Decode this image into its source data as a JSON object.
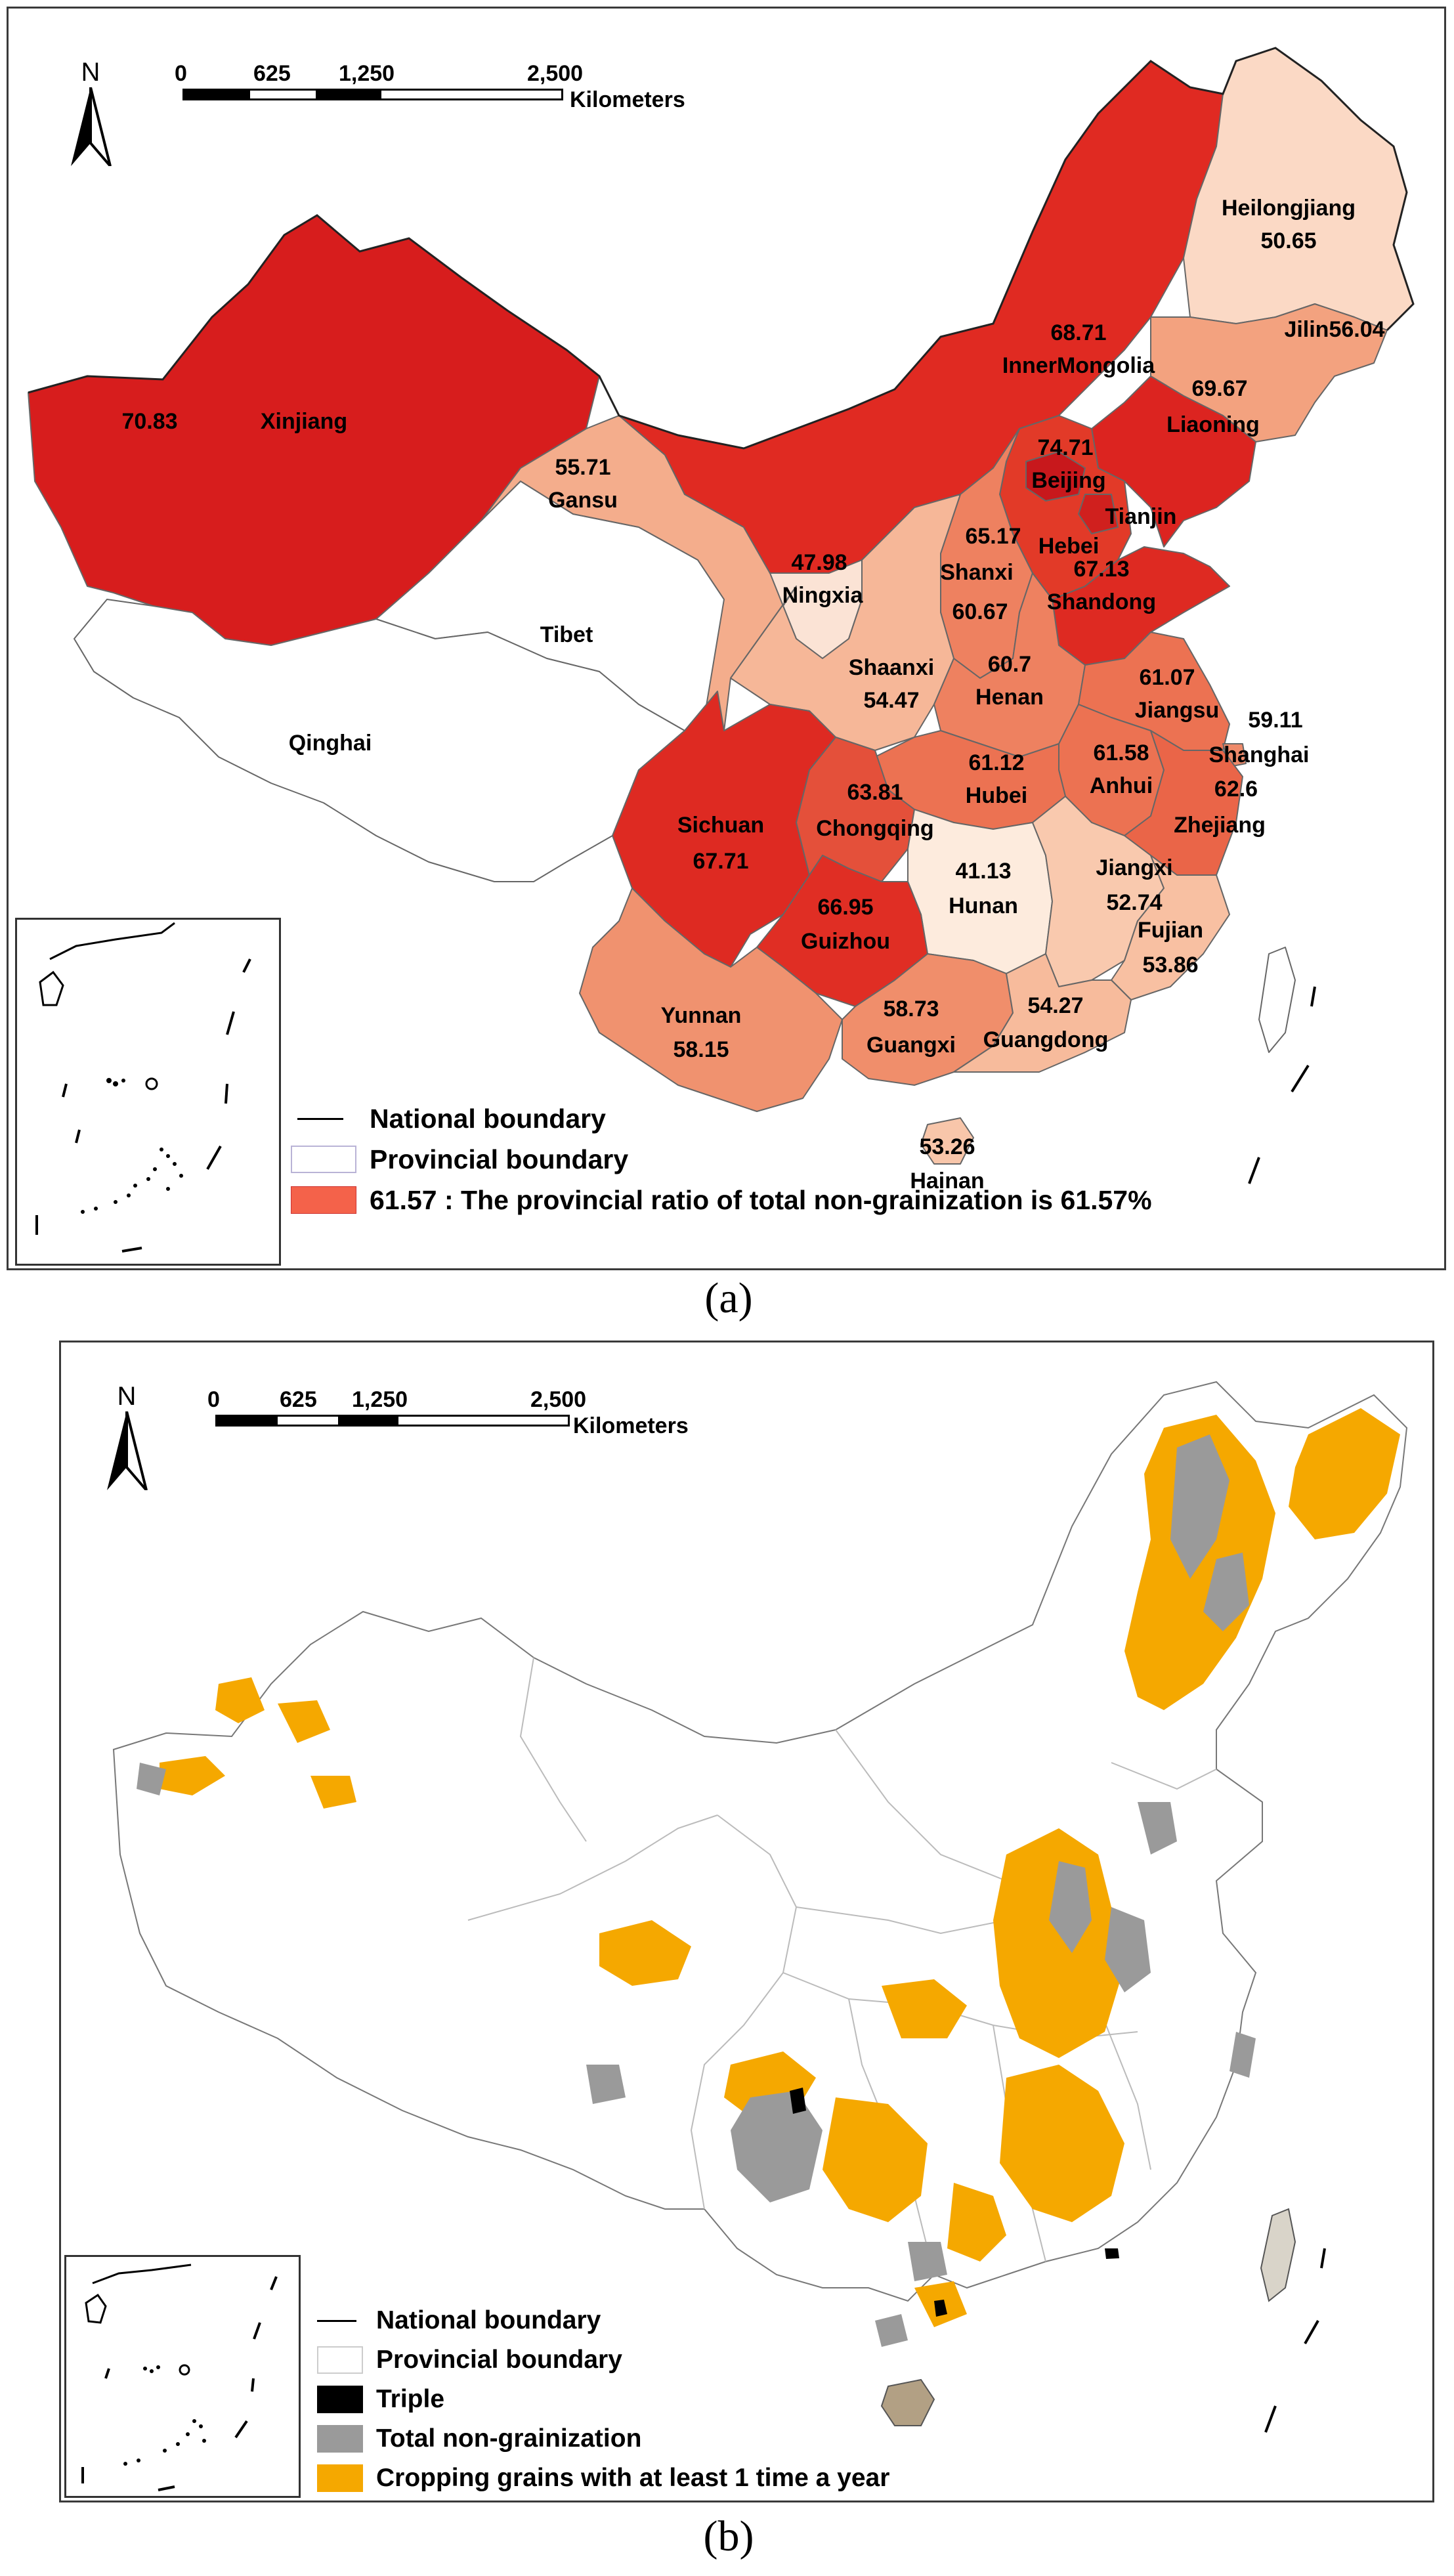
{
  "panels": {
    "a": {
      "caption": "(a)",
      "north": "N",
      "scale": {
        "t0": "0",
        "t1": "625",
        "t2": "1,250",
        "t3": "2,500",
        "unit": "Kilometers"
      },
      "legend": {
        "national": "National boundary",
        "provincial": "Provincial boundary",
        "ratio": "61.57 : The provincial ratio of total non-grainization is 61.57%"
      },
      "provinces": [
        {
          "name": "Xinjiang",
          "value": "70.83",
          "color": "#d71d1d"
        },
        {
          "name": "Gansu",
          "value": "55.71",
          "color": "#f4ad8c"
        },
        {
          "name": "InnerMongolia",
          "value": "68.71",
          "color": "#e02a22"
        },
        {
          "name": "Heilongjiang",
          "value": "50.65",
          "color": "#fbd9c5"
        },
        {
          "name": "Jilin",
          "value": "56.04",
          "color": "#f3a27f"
        },
        {
          "name": "Liaoning",
          "value": "69.67",
          "color": "#dc2420"
        },
        {
          "name": "Beijing",
          "value": "74.71",
          "color": "#c8181c"
        },
        {
          "name": "Tianjin",
          "value": "",
          "color": "#d0201e"
        },
        {
          "name": "Hebei",
          "value": "65.17",
          "color": "#e23a28"
        },
        {
          "name": "Shanxi",
          "value": "60.67",
          "color": "#ee8160"
        },
        {
          "name": "Shandong",
          "value": "67.13",
          "color": "#de2a22"
        },
        {
          "name": "Ningxia",
          "value": "47.98",
          "color": "#fbe3d5"
        },
        {
          "name": "Shaanxi",
          "value": "54.47",
          "color": "#f6b798"
        },
        {
          "name": "Henan",
          "value": "60.7",
          "color": "#ee8160"
        },
        {
          "name": "Jiangsu",
          "value": "61.07",
          "color": "#ec7252"
        },
        {
          "name": "Shanghai",
          "value": "59.11",
          "color": "#ef8a6a"
        },
        {
          "name": "Anhui",
          "value": "61.58",
          "color": "#ec7252"
        },
        {
          "name": "Hubei",
          "value": "61.12",
          "color": "#ec7252"
        },
        {
          "name": "Zhejiang",
          "value": "62.6",
          "color": "#ea6548"
        },
        {
          "name": "Sichuan",
          "value": "67.71",
          "color": "#de2a22"
        },
        {
          "name": "Chongqing",
          "value": "63.81",
          "color": "#e4503a"
        },
        {
          "name": "Hunan",
          "value": "41.13",
          "color": "#fdebdd"
        },
        {
          "name": "Jiangxi",
          "value": "52.74",
          "color": "#f9c9ae"
        },
        {
          "name": "Guizhou",
          "value": "66.95",
          "color": "#e02e24"
        },
        {
          "name": "Fujian",
          "value": "53.86",
          "color": "#f8c0a2"
        },
        {
          "name": "Yunnan",
          "value": "58.15",
          "color": "#f0926f"
        },
        {
          "name": "Guangxi",
          "value": "58.73",
          "color": "#f08e6b"
        },
        {
          "name": "Guangdong",
          "value": "54.27",
          "color": "#f7bb9c"
        },
        {
          "name": "Hainan",
          "value": "53.26",
          "color": "#f8c6aa"
        },
        {
          "name": "Tibet",
          "value": "",
          "color": "#ffffff"
        },
        {
          "name": "Qinghai",
          "value": "",
          "color": "#ffffff"
        }
      ],
      "legend_swatch_color": "#f4624a"
    },
    "b": {
      "caption": "(b)",
      "north": "N",
      "scale": {
        "t0": "0",
        "t1": "625",
        "t2": "1,250",
        "t3": "2,500",
        "unit": "Kilometers"
      },
      "legend": {
        "national": "National boundary",
        "provincial": "Provincial boundary",
        "triple": "Triple",
        "nongrain": "Total non-grainization",
        "cropping": "Cropping grains with at least 1 time a year"
      },
      "colors": {
        "triple": "#000000",
        "nongrain": "#9a9a9a",
        "cropping": "#f5a800"
      }
    }
  }
}
